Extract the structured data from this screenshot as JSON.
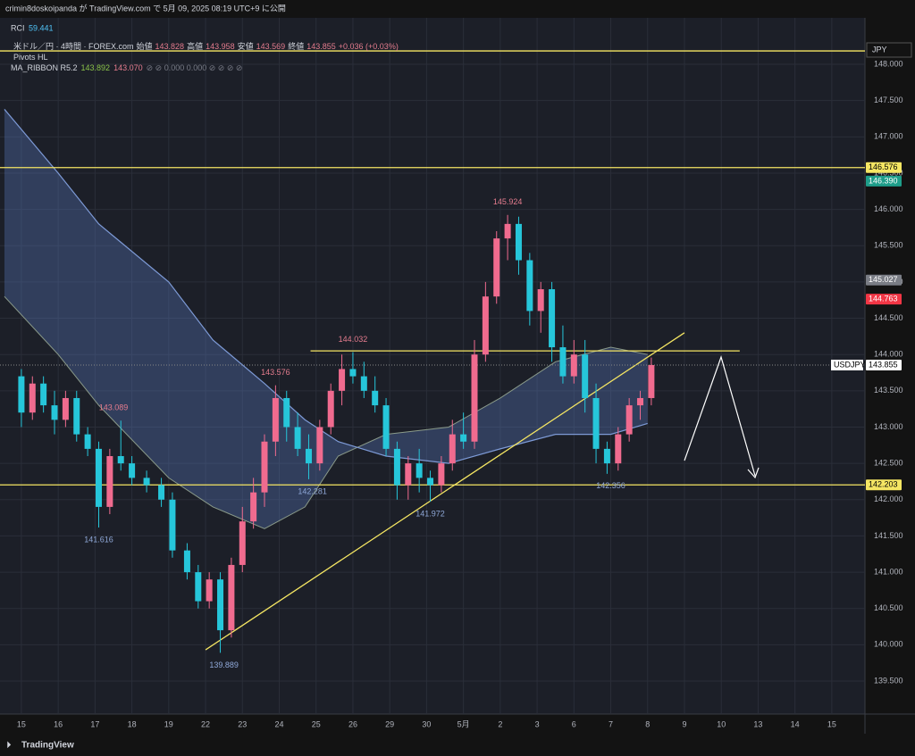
{
  "header": "crimin8doskoipanda が TradingView.com で 5月 09, 2025 08:19 UTC+9 に公開",
  "footer": "TradingView",
  "chart_data": {
    "type": "candlestick",
    "indicator": {
      "name": "RCI",
      "value": 59.441
    },
    "legend": {
      "symbol": "米ドル／円 · 4時間 · FOREX.com",
      "open_label": "始値",
      "open": 143.828,
      "high_label": "高値",
      "high": 143.958,
      "low_label": "安値",
      "low": 143.569,
      "close_label": "終値",
      "close": 143.855,
      "change": "+0.036 (+0.03%)",
      "pivots": "Pivots HL",
      "ribbon": "MA_RIBBON R5.2",
      "ribbon_fast": 143.892,
      "ribbon_slow": {
        "value": 143.07,
        "label": "143.070"
      },
      "ribbon_rest": "⊘ ⊘ 0.000 0.000 ⊘ ⊘ ⊘ ⊘"
    },
    "currency": "JPY",
    "symbol": "USDJPY",
    "up_color": "#f06b8f",
    "down_color": "#26c6da",
    "xlim": [
      -0.58,
      22.9
    ],
    "ylim": [
      139.045,
      148.64
    ],
    "xticks": [
      {
        "value": 0,
        "label": "15"
      },
      {
        "value": 1,
        "label": "16"
      },
      {
        "value": 2,
        "label": "17"
      },
      {
        "value": 3,
        "label": "18"
      },
      {
        "value": 4,
        "label": "19"
      },
      {
        "value": 5,
        "label": "22"
      },
      {
        "value": 6,
        "label": "23"
      },
      {
        "value": 7,
        "label": "24"
      },
      {
        "value": 8,
        "label": "25"
      },
      {
        "value": 9,
        "label": "26"
      },
      {
        "value": 10,
        "label": "29"
      },
      {
        "value": 11,
        "label": "30"
      },
      {
        "value": 12,
        "label": "5月"
      },
      {
        "value": 13,
        "label": "2"
      },
      {
        "value": 14,
        "label": "3"
      },
      {
        "value": 15,
        "label": "6"
      },
      {
        "value": 16,
        "label": "7"
      },
      {
        "value": 17,
        "label": "8"
      },
      {
        "value": 18,
        "label": "9"
      },
      {
        "value": 19,
        "label": "10"
      },
      {
        "value": 20,
        "label": "13"
      },
      {
        "value": 21,
        "label": "14"
      },
      {
        "value": 22,
        "label": "15"
      }
    ],
    "yticks": [
      {
        "value": 139.5,
        "label": "139.500"
      },
      {
        "value": 140,
        "label": "140.000"
      },
      {
        "value": 140.5,
        "label": "140.500"
      },
      {
        "value": 141,
        "label": "141.000"
      },
      {
        "value": 141.5,
        "label": "141.500"
      },
      {
        "value": 142,
        "label": "142.000"
      },
      {
        "value": 142.5,
        "label": "142.500"
      },
      {
        "value": 143,
        "label": "143.000"
      },
      {
        "value": 143.5,
        "label": "143.500"
      },
      {
        "value": 144,
        "label": "144.000"
      },
      {
        "value": 144.5,
        "label": "144.500"
      },
      {
        "value": 145,
        "label": "145.000"
      },
      {
        "value": 145.5,
        "label": "145.500"
      },
      {
        "value": 146,
        "label": "146.000"
      },
      {
        "value": 146.5,
        "label": "146.500"
      },
      {
        "value": 147,
        "label": "147.000"
      },
      {
        "value": 147.5,
        "label": "147.500"
      },
      {
        "value": 148,
        "label": "148.000"
      }
    ],
    "x": [
      0,
      0.3,
      0.6,
      0.9,
      1.2,
      1.5,
      1.8,
      2.1,
      2.4,
      2.7,
      3,
      3.4,
      3.8,
      4.1,
      4.5,
      4.8,
      5.1,
      5.4,
      5.7,
      6,
      6.3,
      6.6,
      6.9,
      7.2,
      7.5,
      7.8,
      8.1,
      8.4,
      8.7,
      9,
      9.3,
      9.6,
      9.9,
      10.2,
      10.5,
      10.8,
      11.1,
      11.4,
      11.7,
      12,
      12.3,
      12.6,
      12.9,
      13.2,
      13.5,
      13.8,
      14.1,
      14.4,
      14.7,
      15,
      15.3,
      15.6,
      15.9,
      16.2,
      16.5,
      16.8,
      17.1
    ],
    "open": [
      143.7,
      143.2,
      143.6,
      143.3,
      143.1,
      143.4,
      142.9,
      142.7,
      141.9,
      142.6,
      142.5,
      142.3,
      142.2,
      142,
      141.3,
      141,
      140.6,
      140.9,
      140.2,
      141.1,
      141.7,
      142.1,
      142.8,
      143.4,
      143,
      142.7,
      142.5,
      143,
      143.5,
      143.8,
      143.7,
      143.5,
      143.3,
      142.7,
      142.2,
      142.5,
      142.3,
      142.2,
      142.5,
      142.9,
      142.8,
      144,
      144.8,
      145.6,
      145.8,
      145.3,
      144.6,
      144.9,
      144.1,
      143.7,
      144,
      143.4,
      142.7,
      142.5,
      142.9,
      143.3,
      143.4
    ],
    "high": [
      143.8,
      143.7,
      143.7,
      143.5,
      143.5,
      143.5,
      143,
      142.8,
      142.7,
      143.089,
      142.6,
      142.4,
      142.3,
      142.1,
      141.4,
      141.1,
      141,
      141,
      141.2,
      141.9,
      142.3,
      142.9,
      143.576,
      143.5,
      143.2,
      142.9,
      143.1,
      143.6,
      144,
      144.032,
      143.9,
      143.7,
      143.4,
      142.8,
      142.6,
      142.7,
      142.4,
      142.6,
      143.1,
      143.2,
      144.2,
      145,
      145.7,
      145.924,
      145.9,
      145.4,
      145,
      145,
      144.4,
      144.2,
      144.2,
      143.6,
      142.8,
      143,
      143.4,
      143.5,
      143.958
    ],
    "low": [
      143,
      143.1,
      143.2,
      142.9,
      143,
      142.8,
      142.6,
      141.616,
      141.8,
      142.4,
      142.2,
      142.1,
      141.9,
      141.2,
      140.9,
      140.5,
      140.5,
      139.889,
      140.1,
      141,
      141.6,
      141.9,
      142.6,
      142.8,
      142.6,
      142.281,
      142.4,
      142.9,
      143.3,
      143.6,
      143.4,
      143.2,
      142.6,
      142,
      142,
      142.1,
      141.972,
      142.1,
      142.4,
      142.7,
      142.7,
      143.9,
      144.7,
      145.3,
      145.1,
      144.4,
      144.3,
      143.9,
      143.6,
      143.6,
      143.2,
      142.5,
      142.356,
      142.4,
      142.8,
      143.1,
      143.3
    ],
    "close": [
      143.2,
      143.6,
      143.3,
      143.1,
      143.4,
      142.9,
      142.7,
      141.9,
      142.6,
      142.5,
      142.3,
      142.2,
      142,
      141.3,
      141,
      140.6,
      140.9,
      140.2,
      141.1,
      141.7,
      142.1,
      142.8,
      143.4,
      143,
      142.7,
      142.5,
      143,
      143.5,
      143.8,
      143.7,
      143.5,
      143.3,
      142.7,
      142.2,
      142.5,
      142.3,
      142.2,
      142.5,
      142.9,
      142.8,
      144,
      144.8,
      145.6,
      145.8,
      145.3,
      144.6,
      144.9,
      144.1,
      143.7,
      144,
      143.4,
      142.7,
      142.5,
      142.9,
      143.3,
      143.4,
      143.855
    ],
    "ribbon_x": [
      -0.46,
      1,
      2.1,
      4,
      5.2,
      6.6,
      7.7,
      8.6,
      9.9,
      11.6,
      13,
      14.5,
      16,
      17
    ],
    "ribbon_fast_values": [
      144.8,
      144,
      143.3,
      142.3,
      141.9,
      141.6,
      141.9,
      142.6,
      142.9,
      143,
      143.4,
      143.9,
      144.1,
      144
    ],
    "ribbon_slow_values": [
      147.38,
      146.5,
      145.8,
      145,
      144.2,
      143.6,
      143.1,
      142.8,
      142.6,
      142.5,
      142.7,
      142.9,
      142.9,
      143.05
    ],
    "pivots": {
      "x": [
        2.5,
        2.1,
        5.5,
        6.9,
        7.9,
        9.0,
        11.1,
        13.2,
        16.0
      ],
      "values": [
        143.089,
        141.616,
        139.889,
        143.576,
        142.281,
        144.032,
        141.972,
        145.924,
        142.356
      ],
      "kind": [
        "high",
        "low",
        "low",
        "high",
        "low",
        "high",
        "low",
        "high",
        "low"
      ]
    },
    "hlines": [
      148.184,
      146.576,
      142.203
    ],
    "hline_color": "#f5e663",
    "resistance": {
      "x": [
        7.85,
        19.5
      ],
      "value": 144.05
    },
    "trendline": {
      "x": [
        5.0,
        18.0
      ],
      "y": [
        139.93,
        144.3
      ]
    },
    "price_tags": [
      {
        "value": 146.576,
        "label": "146.576",
        "color": "#f5e663"
      },
      {
        "value": 146.39,
        "label": "146.390",
        "color": "#1e9e8a"
      },
      {
        "value": 145.027,
        "label": "145.027",
        "color": "#7a7d85"
      },
      {
        "value": 144.763,
        "label": "144.763",
        "color": "#f23645"
      },
      {
        "value": 143.855,
        "label": "143.855",
        "color": "#ffffff"
      },
      {
        "value": 142.203,
        "label": "142.203",
        "color": "#f5e663"
      }
    ]
  }
}
